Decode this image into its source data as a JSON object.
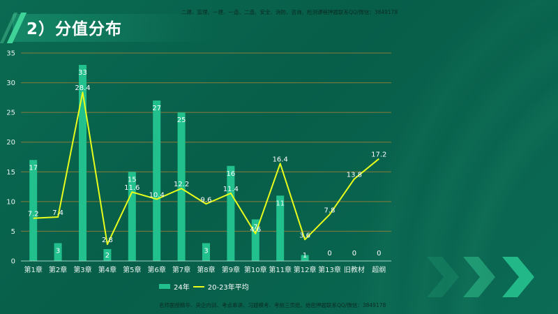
{
  "header": {
    "title": "2）分值分布",
    "top_note": "二建、监理、一建、一造、二造、安全、消防、咨询、检测课程押题联系QQ/微信：3849178"
  },
  "footer": {
    "bottom_note": "名师面授精华、央企内训、考点串讲、习题模考、考前三页纸、绝密押题联系QQ/微信：3849178"
  },
  "colors": {
    "background": "#0a6650",
    "bar": "#22c08c",
    "line": "#e8ff1c",
    "gridline": "#8a7a3a",
    "axis": "#9fd8c4"
  },
  "legend": {
    "bar_label": "24年",
    "line_label": "20-23年平均"
  },
  "chart_data": {
    "type": "bar",
    "title": "2）分值分布",
    "xlabel": "",
    "ylabel": "",
    "ylim": [
      0,
      35
    ],
    "yticks": [
      0,
      5,
      10,
      15,
      20,
      25,
      30,
      35
    ],
    "grid": true,
    "legend_position": "bottom",
    "categories": [
      "第1章",
      "第2章",
      "第3章",
      "第4章",
      "第5章",
      "第6章",
      "第7章",
      "第8章",
      "第9章",
      "第10章",
      "第11章",
      "第12章",
      "第13章",
      "旧教材",
      "超纲"
    ],
    "series": [
      {
        "name": "24年",
        "type": "bar",
        "values": [
          17,
          3,
          33,
          2,
          15,
          27,
          25,
          3,
          16,
          7,
          11,
          1,
          0,
          0,
          0
        ]
      },
      {
        "name": "20-23年平均",
        "type": "line",
        "values": [
          7.2,
          7.4,
          28.4,
          2.8,
          11.6,
          10.4,
          12.2,
          9.6,
          11.4,
          4.6,
          16.4,
          3.6,
          7.8,
          13.8,
          17.2
        ]
      }
    ]
  }
}
